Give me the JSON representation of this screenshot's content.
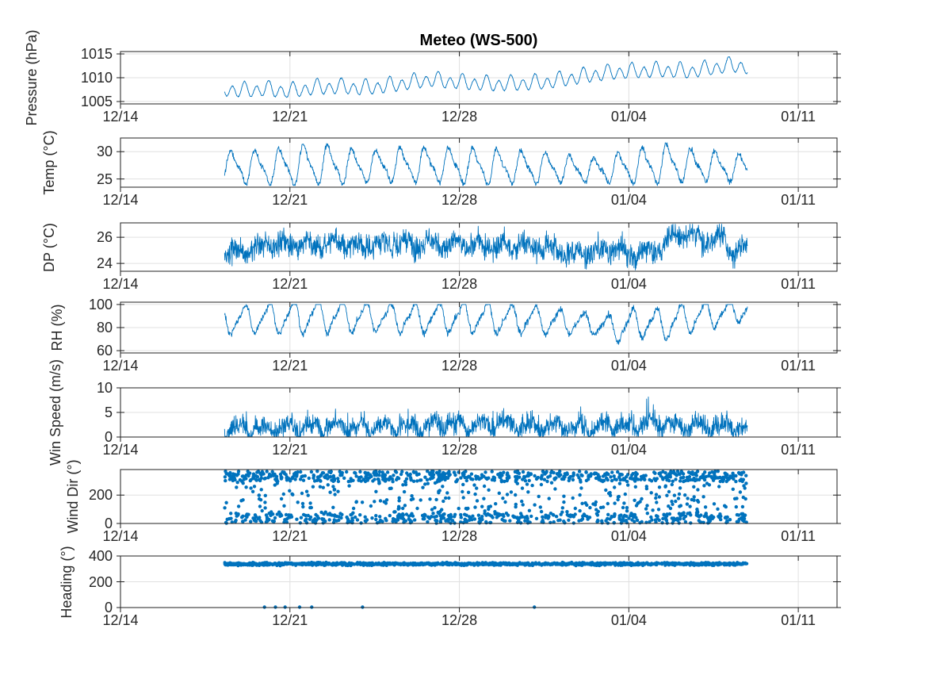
{
  "title": "Meteo (WS-500)",
  "colors": {
    "line": "#0072BD",
    "marker": "#0072BD",
    "grid": "#e0e0e0",
    "axis": "#202020",
    "text": "#262626",
    "background": "#ffffff"
  },
  "x_axis": {
    "tick_labels": [
      "12/14",
      "12/21",
      "12/28",
      "01/04",
      "01/11"
    ],
    "tick_days": [
      0,
      7,
      14,
      21,
      28
    ],
    "xlim": [
      0,
      29.6
    ]
  },
  "chart_data": {
    "type": "line",
    "description": "Seven stacked time-series panels sharing a date x-axis from 12/14 to 01/11; data spans ~12/18 to ~01/09",
    "panels": [
      {
        "name": "pressure",
        "ylabel": "Pressure (hPa)",
        "ylim": [
          1004.5,
          1015.5
        ],
        "yticks": [
          1005,
          1010,
          1015
        ],
        "ytick_labels": [
          "1005",
          "1010",
          "1015"
        ],
        "series_type": "line",
        "seed": 11,
        "samples": 1300,
        "data_range_days": [
          4.3,
          25.9
        ],
        "trend_points": [
          [
            4.3,
            1007.6
          ],
          [
            5,
            1007.3
          ],
          [
            6,
            1007.6
          ],
          [
            7,
            1007.2
          ],
          [
            8,
            1007.9
          ],
          [
            9,
            1008.1
          ],
          [
            10,
            1007.8
          ],
          [
            11,
            1008.3
          ],
          [
            12,
            1009.0
          ],
          [
            12.8,
            1009.6
          ],
          [
            13.6,
            1009.2
          ],
          [
            14.5,
            1008.9
          ],
          [
            15.5,
            1008.6
          ],
          [
            16.5,
            1008.8
          ],
          [
            17.5,
            1009.0
          ],
          [
            18.5,
            1009.8
          ],
          [
            19.5,
            1010.6
          ],
          [
            20.5,
            1011.2
          ],
          [
            21.5,
            1011.4
          ],
          [
            22.5,
            1011.6
          ],
          [
            23.5,
            1011.3
          ],
          [
            24.5,
            1012.1
          ],
          [
            25.3,
            1012.6
          ],
          [
            25.9,
            1012.2
          ]
        ],
        "harmonics": [
          {
            "period": 0.5,
            "amp": 1.35,
            "phase": 0.0
          },
          {
            "period": 1,
            "amp": 0.55,
            "phase": 0.8
          }
        ],
        "noise": 0.14
      },
      {
        "name": "temp",
        "ylabel": "Temp (°C)",
        "ylim": [
          23.5,
          32.5
        ],
        "yticks": [
          25,
          30
        ],
        "ytick_labels": [
          "25",
          "30"
        ],
        "series_type": "line",
        "seed": 22,
        "samples": 1400,
        "data_range_days": [
          4.3,
          25.9
        ],
        "trend_points": [
          [
            4.3,
            27.4
          ],
          [
            6,
            27.1
          ],
          [
            8,
            27.6
          ],
          [
            10,
            27.3
          ],
          [
            12,
            27.6
          ],
          [
            14,
            27.4
          ],
          [
            16,
            27.2
          ],
          [
            18,
            27.0
          ],
          [
            19.5,
            26.6
          ],
          [
            21,
            27.2
          ],
          [
            22.5,
            27.8
          ],
          [
            24,
            27.4
          ],
          [
            25.9,
            27.0
          ]
        ],
        "amp_points": [
          [
            4.3,
            1.0
          ],
          [
            6,
            1.1
          ],
          [
            7.5,
            1.3
          ],
          [
            9,
            1.25
          ],
          [
            10.5,
            1.0
          ],
          [
            12,
            1.15
          ],
          [
            13.5,
            1.1
          ],
          [
            15,
            1.2
          ],
          [
            16.5,
            1.05
          ],
          [
            18,
            0.95
          ],
          [
            19.5,
            0.75
          ],
          [
            21,
            1.1
          ],
          [
            22.5,
            1.25
          ],
          [
            24,
            1.0
          ],
          [
            25.9,
            0.85
          ]
        ],
        "harmonics": [
          {
            "period": 1,
            "amp": 2.5,
            "phase": 4.0
          },
          {
            "period": 0.5,
            "amp": 0.85,
            "phase": 1.7
          }
        ],
        "noise": 0.5,
        "clip": [
          23.8,
          32.4
        ]
      },
      {
        "name": "dew_point",
        "ylabel": "DP (°C)",
        "ylim": [
          23.4,
          27.1
        ],
        "yticks": [
          24,
          26
        ],
        "ytick_labels": [
          "24",
          "26"
        ],
        "series_type": "line",
        "seed": 33,
        "samples": 1600,
        "data_range_days": [
          4.3,
          25.9
        ],
        "trend_points": [
          [
            4.3,
            24.6
          ],
          [
            5,
            24.9
          ],
          [
            6,
            25.3
          ],
          [
            7,
            25.5
          ],
          [
            8,
            25.4
          ],
          [
            9,
            25.6
          ],
          [
            10,
            25.3
          ],
          [
            11,
            25.6
          ],
          [
            12,
            25.5
          ],
          [
            13,
            25.4
          ],
          [
            14,
            25.5
          ],
          [
            15,
            25.3
          ],
          [
            16,
            25.5
          ],
          [
            17,
            25.2
          ],
          [
            18,
            25.0
          ],
          [
            18.8,
            24.6
          ],
          [
            19.5,
            25.0
          ],
          [
            20.5,
            25.1
          ],
          [
            21,
            24.6
          ],
          [
            21.5,
            24.9
          ],
          [
            22,
            24.8
          ],
          [
            22.8,
            26.1
          ],
          [
            23.5,
            26.3
          ],
          [
            24.2,
            25.6
          ],
          [
            24.8,
            25.9
          ],
          [
            25.3,
            24.9
          ],
          [
            25.9,
            25.0
          ]
        ],
        "harmonics": [
          {
            "period": 1,
            "amp": 0.3,
            "phase": 3.0
          },
          {
            "period": 0.35,
            "amp": 0.15,
            "phase": 0.0
          }
        ],
        "noise": 0.9,
        "clip": [
          23.5,
          27.0
        ]
      },
      {
        "name": "rh",
        "ylabel": "RH (%)",
        "ylim": [
          58,
          102
        ],
        "yticks": [
          60,
          80,
          100
        ],
        "ytick_labels": [
          "60",
          "80",
          "100"
        ],
        "series_type": "line",
        "seed": 44,
        "samples": 1400,
        "data_range_days": [
          4.3,
          25.9
        ],
        "trend_points": [
          [
            4.3,
            86
          ],
          [
            6,
            88
          ],
          [
            8,
            90
          ],
          [
            10,
            89
          ],
          [
            12,
            88
          ],
          [
            14,
            89
          ],
          [
            16,
            88
          ],
          [
            17.5,
            86
          ],
          [
            19,
            84
          ],
          [
            20.5,
            79
          ],
          [
            21.5,
            85
          ],
          [
            22.3,
            82
          ],
          [
            23,
            86
          ],
          [
            24,
            90
          ],
          [
            25,
            93
          ],
          [
            25.9,
            96
          ]
        ],
        "amp_points": [
          [
            4.3,
            1.0
          ],
          [
            6,
            1.1
          ],
          [
            7.5,
            1.3
          ],
          [
            9,
            1.25
          ],
          [
            10.5,
            1.0
          ],
          [
            12,
            1.15
          ],
          [
            13.5,
            1.1
          ],
          [
            15,
            1.2
          ],
          [
            16.5,
            1.05
          ],
          [
            18,
            0.95
          ],
          [
            19.5,
            0.75
          ],
          [
            21,
            1.1
          ],
          [
            22.5,
            1.25
          ],
          [
            24,
            1.0
          ],
          [
            25.9,
            0.85
          ]
        ],
        "harmonics": [
          {
            "period": 1,
            "amp": -10.5,
            "phase": 4.0
          },
          {
            "period": 0.5,
            "amp": -3.2,
            "phase": 1.7
          }
        ],
        "noise": 3.0,
        "clip": [
          62,
          100
        ]
      },
      {
        "name": "wind_speed",
        "ylabel": "Win Speed (m/s)",
        "ylim": [
          0,
          10
        ],
        "yticks": [
          0,
          5,
          10
        ],
        "ytick_labels": [
          "0",
          "5",
          "10"
        ],
        "series_type": "line",
        "seed": 55,
        "samples": 1800,
        "data_range_days": [
          4.3,
          25.9
        ],
        "trend_points": [
          [
            4.3,
            1.8
          ],
          [
            6,
            1.6
          ],
          [
            8,
            2.2
          ],
          [
            10,
            1.8
          ],
          [
            12,
            2.0
          ],
          [
            13.5,
            2.6
          ],
          [
            14.5,
            2.2
          ],
          [
            16,
            2.8
          ],
          [
            17,
            2.2
          ],
          [
            19,
            1.8
          ],
          [
            21,
            2.4
          ],
          [
            22,
            3.0
          ],
          [
            23,
            2.2
          ],
          [
            24,
            2.0
          ],
          [
            25,
            2.2
          ],
          [
            25.9,
            1.6
          ]
        ],
        "harmonics": [
          {
            "period": 1,
            "amp": 1.0,
            "phase": 2.2
          },
          {
            "period": 0.5,
            "amp": 0.45,
            "phase": 0.5
          }
        ],
        "noise": 2.0,
        "spike_p": 0.025,
        "spike_amp": 4.0,
        "clip": [
          0.15,
          10
        ]
      },
      {
        "name": "wind_dir",
        "ylabel": "Wind Dir (°)",
        "ylim": [
          0,
          380
        ],
        "yticks": [
          0,
          200
        ],
        "ytick_labels": [
          "0",
          "200"
        ],
        "series_type": "scatter",
        "seed": 66,
        "n": 1350,
        "dot_radius": 2.2,
        "data_range_days": [
          4.3,
          25.9
        ],
        "clusters": [
          {
            "weight": 0.45,
            "min": 295,
            "max": 368
          },
          {
            "weight": 0.35,
            "min": 2,
            "max": 72
          },
          {
            "weight": 0.2,
            "min": 72,
            "max": 295
          }
        ]
      },
      {
        "name": "heading",
        "ylabel": "Heading (°)",
        "ylim": [
          0,
          400
        ],
        "yticks": [
          0,
          200,
          400
        ],
        "ytick_labels": [
          "0",
          "200",
          "400"
        ],
        "series_type": "scatter-band",
        "seed": 77,
        "n": 1800,
        "dot_radius": 1.9,
        "data_range_days": [
          4.3,
          25.9
        ],
        "band_mean": 338,
        "band_sd": 5.5,
        "band_clip": [
          323,
          352
        ],
        "outlier_days": [
          5.95,
          6.4,
          6.8,
          7.4,
          7.9,
          10.0,
          17.1
        ],
        "outlier_value": 3
      }
    ]
  }
}
